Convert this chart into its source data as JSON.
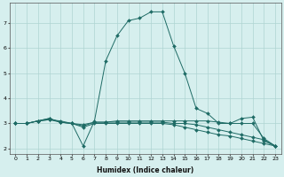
{
  "xlabel": "Humidex (Indice chaleur)",
  "bg_color": "#d6efee",
  "grid_color": "#afd4d2",
  "line_color": "#1e6b65",
  "xlim": [
    -0.5,
    23.5
  ],
  "ylim": [
    1.8,
    7.8
  ],
  "yticks": [
    2,
    3,
    4,
    5,
    6,
    7
  ],
  "xticks": [
    0,
    1,
    2,
    3,
    4,
    5,
    6,
    7,
    8,
    9,
    10,
    11,
    12,
    13,
    14,
    15,
    16,
    17,
    18,
    19,
    20,
    21,
    22,
    23
  ],
  "series": [
    {
      "x": [
        0,
        1,
        2,
        3,
        4,
        5,
        6,
        7,
        8,
        9,
        10,
        11,
        12,
        13,
        14,
        15,
        16,
        17,
        18,
        19,
        20,
        21,
        22,
        23
      ],
      "y": [
        3.0,
        3.0,
        3.1,
        3.2,
        3.05,
        3.0,
        2.1,
        3.1,
        5.5,
        6.5,
        7.1,
        7.2,
        7.45,
        7.45,
        6.1,
        5.0,
        3.6,
        3.4,
        3.0,
        3.0,
        3.2,
        3.25,
        2.3,
        2.1
      ]
    },
    {
      "x": [
        0,
        1,
        2,
        3,
        4,
        5,
        6,
        7,
        8,
        9,
        10,
        11,
        12,
        13,
        14,
        15,
        16,
        17,
        18,
        19,
        20,
        21,
        22,
        23
      ],
      "y": [
        3.0,
        3.0,
        3.1,
        3.2,
        3.05,
        3.0,
        2.9,
        3.05,
        3.05,
        3.1,
        3.1,
        3.1,
        3.1,
        3.1,
        3.1,
        3.1,
        3.1,
        3.1,
        3.05,
        3.0,
        3.0,
        3.0,
        2.4,
        2.1
      ]
    },
    {
      "x": [
        0,
        1,
        2,
        3,
        4,
        5,
        6,
        7,
        8,
        9,
        10,
        11,
        12,
        13,
        14,
        15,
        16,
        17,
        18,
        19,
        20,
        21,
        22,
        23
      ],
      "y": [
        3.0,
        3.0,
        3.1,
        3.15,
        3.05,
        3.0,
        2.95,
        3.05,
        3.05,
        3.05,
        3.05,
        3.05,
        3.05,
        3.05,
        3.0,
        3.0,
        2.95,
        2.85,
        2.75,
        2.65,
        2.55,
        2.45,
        2.35,
        2.1
      ]
    },
    {
      "x": [
        0,
        1,
        2,
        3,
        4,
        5,
        6,
        7,
        8,
        9,
        10,
        11,
        12,
        13,
        14,
        15,
        16,
        17,
        18,
        19,
        20,
        21,
        22,
        23
      ],
      "y": [
        3.0,
        3.0,
        3.1,
        3.15,
        3.1,
        3.0,
        2.85,
        3.0,
        3.0,
        3.0,
        3.0,
        3.0,
        3.0,
        3.0,
        2.95,
        2.85,
        2.75,
        2.65,
        2.55,
        2.5,
        2.4,
        2.3,
        2.2,
        2.1
      ]
    }
  ]
}
